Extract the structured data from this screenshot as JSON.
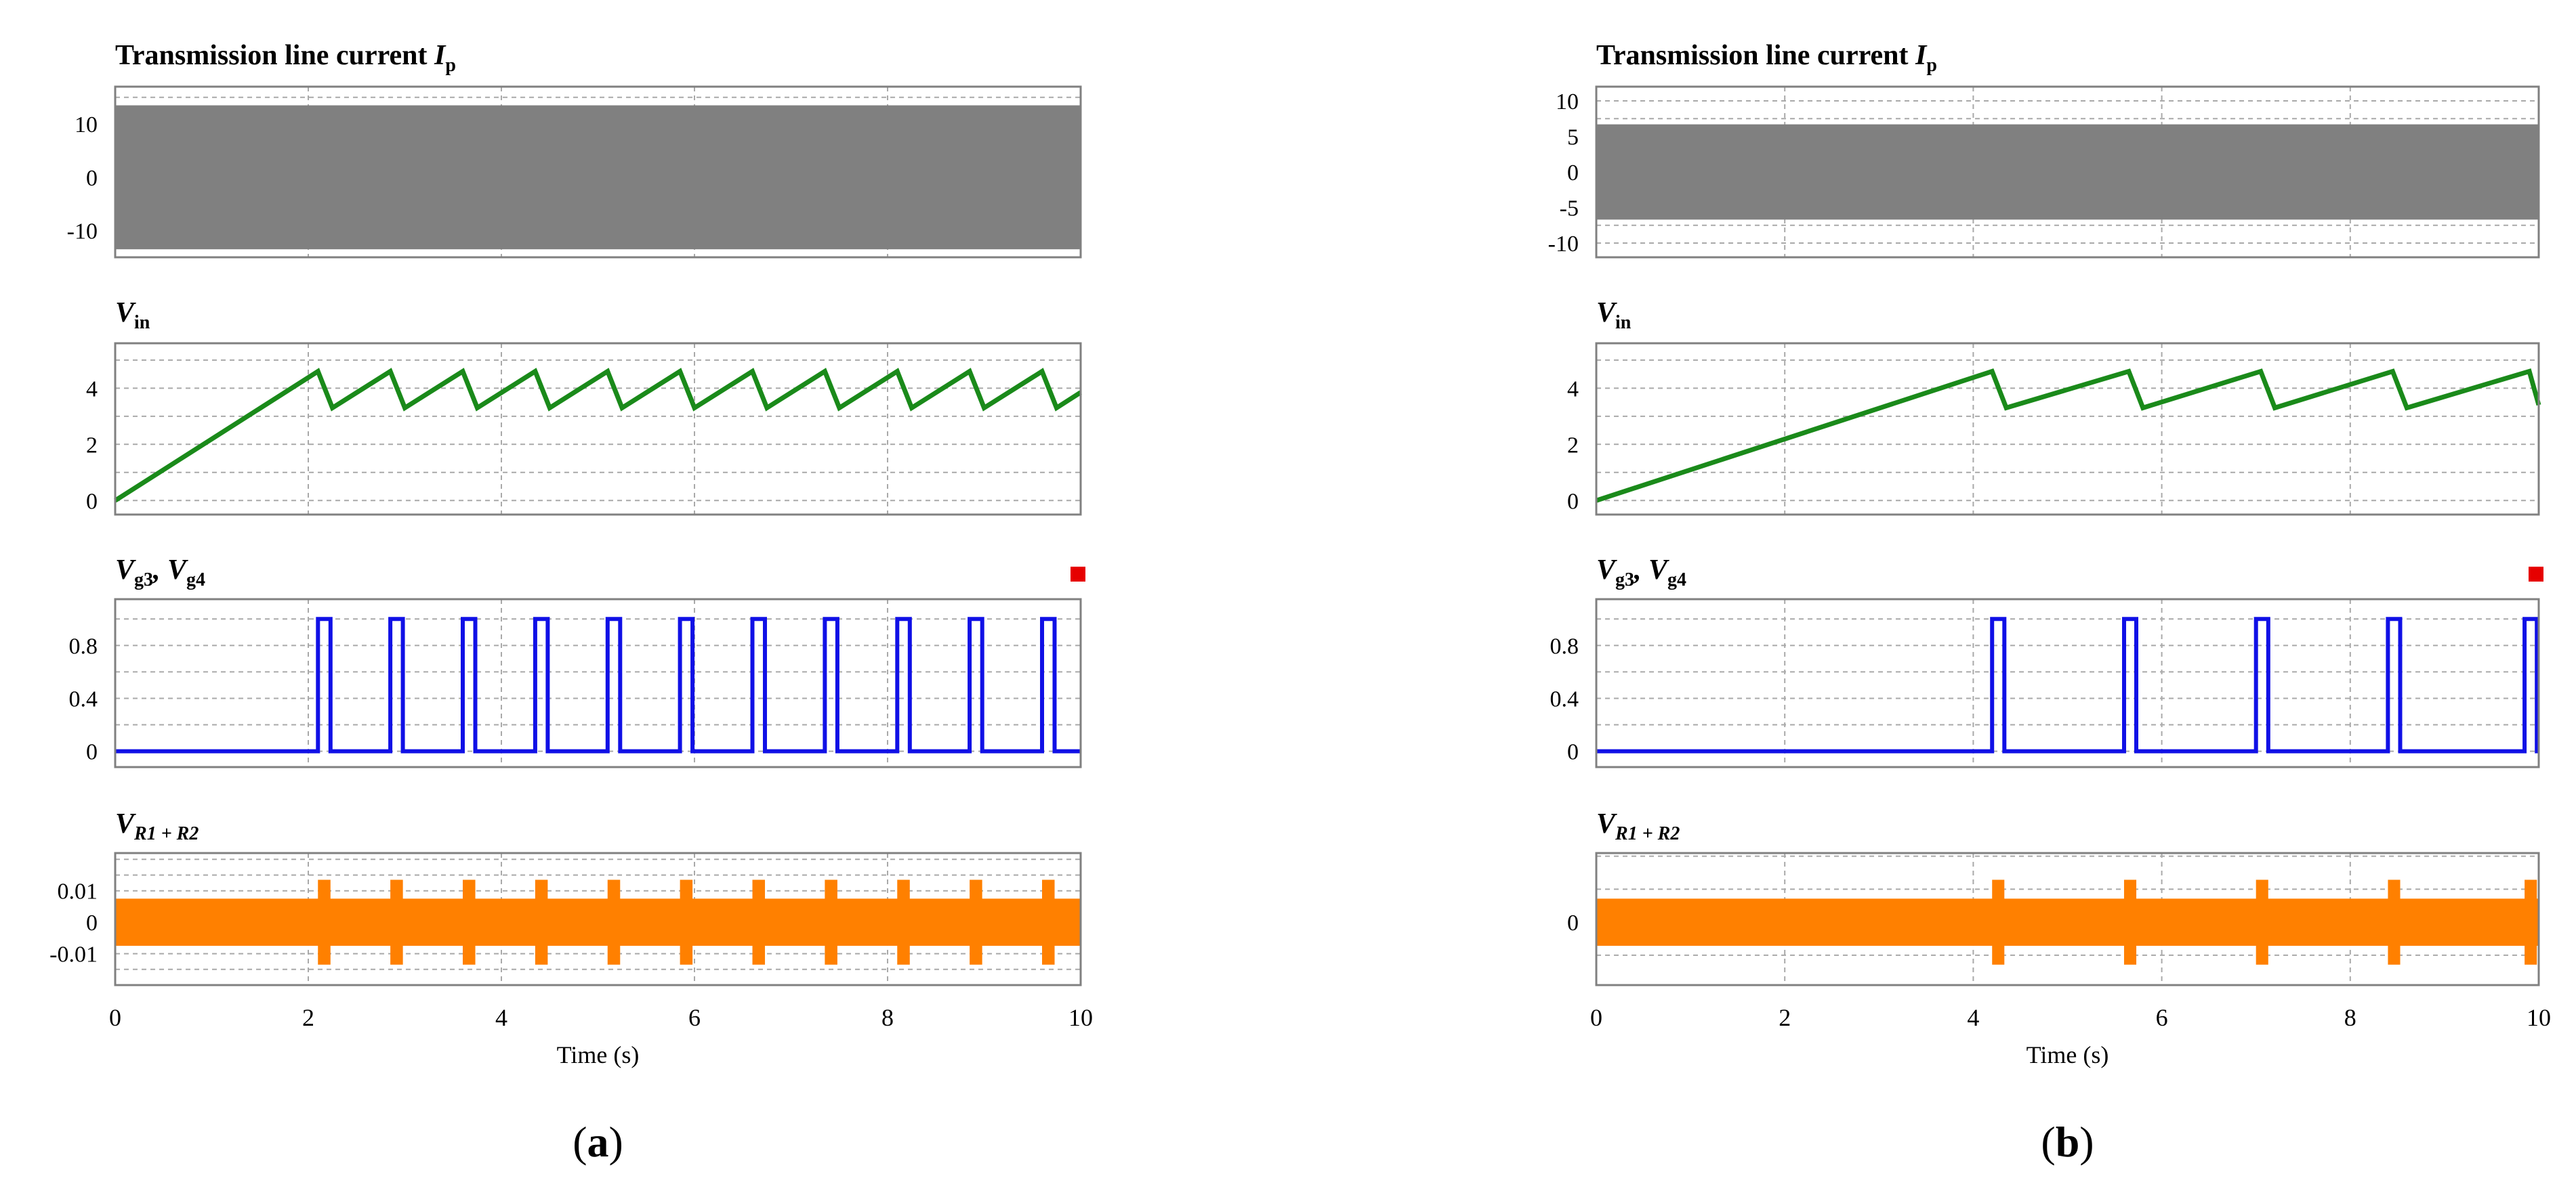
{
  "colors": {
    "current": "#808080",
    "vin": "#1a8a1a",
    "gate": "#1010e6",
    "resistor": "#ff8000",
    "marker": "#e60000",
    "grid": "#a9a9a9",
    "frame": "#808080"
  },
  "x_axis_label": "Time (s)",
  "chart_data": [
    {
      "type": "line",
      "caption": "(a)",
      "xlim": [
        0,
        10
      ],
      "xticks": [
        "0",
        "2",
        "4",
        "6",
        "8",
        "10"
      ],
      "xlabel": "Time (s)",
      "grid": true,
      "panels": [
        {
          "key": "current",
          "title": "Transmission line current I",
          "title_sub": "p",
          "ylim": [
            -15,
            17
          ],
          "yticks": [
            {
              "v": 10,
              "t": "10"
            },
            {
              "v": 0,
              "t": "0"
            },
            {
              "v": -10,
              "t": "-10"
            }
          ],
          "series": [
            {
              "kind": "envelope",
              "amplitude": 13.5
            }
          ]
        },
        {
          "key": "vin",
          "title": "V",
          "title_sub": "in",
          "ylim": [
            -0.5,
            5.6
          ],
          "yticks": [
            {
              "v": 4,
              "t": "4"
            },
            {
              "v": 2,
              "t": "2"
            },
            {
              "v": 0,
              "t": "0"
            }
          ],
          "series": [
            {
              "kind": "line",
              "x": [
                0,
                2.1,
                2.25,
                2.85,
                3.0,
                3.6,
                3.75,
                4.35,
                4.5,
                5.1,
                5.25,
                5.85,
                6.0,
                6.6,
                6.75,
                7.35,
                7.5,
                8.1,
                8.25,
                8.85,
                9.0,
                9.6,
                9.75,
                10.0
              ],
              "y": [
                0.0,
                4.6,
                3.3,
                4.6,
                3.3,
                4.6,
                3.3,
                4.6,
                3.3,
                4.6,
                3.3,
                4.6,
                3.3,
                4.6,
                3.3,
                4.6,
                3.3,
                4.6,
                3.3,
                4.6,
                3.3,
                4.6,
                3.3,
                3.85
              ]
            }
          ]
        },
        {
          "key": "gate",
          "title": "V",
          "title_sub": "g3",
          "title2": ", V",
          "title2_sub": "g4",
          "ylim": [
            -0.12,
            1.15
          ],
          "yticks": [
            {
              "v": 0.8,
              "t": "0.8"
            },
            {
              "v": 0.4,
              "t": "0.4"
            },
            {
              "v": 0,
              "t": "0"
            }
          ],
          "series": [
            {
              "kind": "pulses",
              "starts": [
                2.1,
                2.85,
                3.6,
                4.35,
                5.1,
                5.85,
                6.6,
                7.35,
                8.1,
                8.85,
                9.6
              ],
              "width": 0.13,
              "high": 1.0,
              "low": 0.0
            }
          ]
        },
        {
          "key": "resistor",
          "title": "V",
          "title_sub": "R1 + R2",
          "ylim": [
            -0.02,
            0.022
          ],
          "yticks": [
            {
              "v": 0.01,
              "t": "0.01"
            },
            {
              "v": 0,
              "t": "0"
            },
            {
              "v": -0.01,
              "t": "-0.01"
            }
          ],
          "series": [
            {
              "kind": "envelope",
              "amplitude": 0.0075,
              "spike_amplitude": 0.0135,
              "spike_starts": [
                2.1,
                2.85,
                3.6,
                4.35,
                5.1,
                5.85,
                6.6,
                7.35,
                8.1,
                8.85,
                9.6
              ],
              "spike_width": 0.13
            }
          ]
        }
      ]
    },
    {
      "type": "line",
      "caption": "(b)",
      "xlim": [
        0,
        10
      ],
      "xticks": [
        "0",
        "2",
        "4",
        "6",
        "8",
        "10"
      ],
      "xlabel": "Time (s)",
      "grid": true,
      "panels": [
        {
          "key": "current",
          "title": "Transmission line current I",
          "title_sub": "p",
          "ylim": [
            -12,
            12
          ],
          "yticks": [
            {
              "v": 10,
              "t": "10"
            },
            {
              "v": 5,
              "t": "5"
            },
            {
              "v": 0,
              "t": "0"
            },
            {
              "v": -5,
              "t": "-5"
            },
            {
              "v": -10,
              "t": "-10"
            }
          ],
          "series": [
            {
              "kind": "envelope",
              "amplitude": 6.7
            }
          ]
        },
        {
          "key": "vin",
          "title": "V",
          "title_sub": "in",
          "ylim": [
            -0.5,
            5.6
          ],
          "yticks": [
            {
              "v": 4,
              "t": "4"
            },
            {
              "v": 2,
              "t": "2"
            },
            {
              "v": 0,
              "t": "0"
            }
          ],
          "series": [
            {
              "kind": "line",
              "x": [
                0,
                4.2,
                4.35,
                5.65,
                5.8,
                7.05,
                7.2,
                8.45,
                8.6,
                9.9,
                10.0
              ],
              "y": [
                0.0,
                4.6,
                3.3,
                4.6,
                3.3,
                4.6,
                3.3,
                4.6,
                3.3,
                4.6,
                3.4
              ]
            }
          ]
        },
        {
          "key": "gate",
          "title": "V",
          "title_sub": "g3",
          "title2": ", V",
          "title2_sub": "g4",
          "ylim": [
            -0.12,
            1.15
          ],
          "yticks": [
            {
              "v": 0.8,
              "t": "0.8"
            },
            {
              "v": 0.4,
              "t": "0.4"
            },
            {
              "v": 0,
              "t": "0"
            }
          ],
          "series": [
            {
              "kind": "pulses",
              "starts": [
                4.2,
                5.6,
                7.0,
                8.4,
                9.85
              ],
              "width": 0.13,
              "high": 1.0,
              "low": 0.0
            }
          ]
        },
        {
          "key": "resistor",
          "title": "V",
          "title_sub": "R1 + R2",
          "ylim": [
            -0.02,
            0.022
          ],
          "yticks": [
            {
              "v": 0,
              "t": "0"
            }
          ],
          "series": [
            {
              "kind": "envelope",
              "amplitude": 0.0075,
              "spike_amplitude": 0.0135,
              "spike_starts": [
                4.2,
                5.6,
                7.0,
                8.4,
                9.85
              ],
              "spike_width": 0.13
            }
          ]
        }
      ]
    }
  ]
}
